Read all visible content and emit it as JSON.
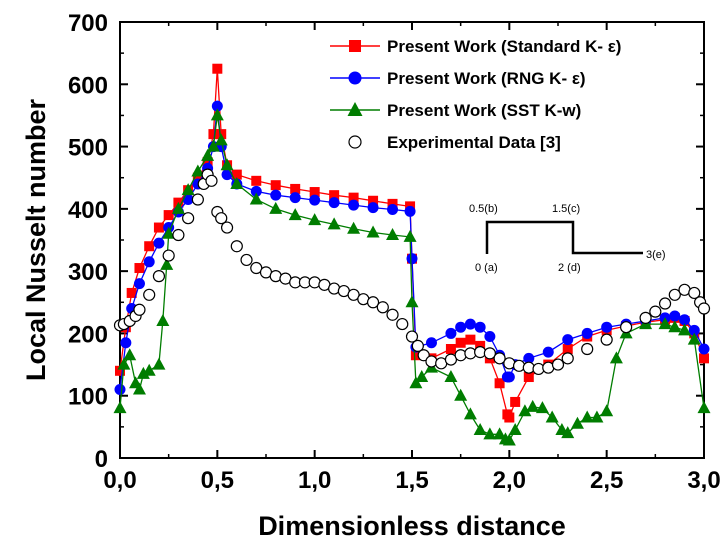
{
  "chart_data": {
    "type": "scatter",
    "xlabel": "Dimensionless distance",
    "ylabel": "Local Nusselt number",
    "xlim": [
      0,
      3
    ],
    "ylim": [
      0,
      700
    ],
    "x_ticks": [
      "0,0",
      "0,5",
      "1,0",
      "1,5",
      "2,0",
      "2,5",
      "3,0"
    ],
    "y_ticks": [
      "0",
      "100",
      "200",
      "300",
      "400",
      "500",
      "600",
      "700"
    ],
    "grid": false,
    "legend_position": "top-right",
    "series": [
      {
        "name": "Present Work (Standard K- ε)",
        "color": "#ff0000",
        "marker": "square",
        "connected": true,
        "points": [
          [
            0.0,
            140
          ],
          [
            0.03,
            210
          ],
          [
            0.06,
            265
          ],
          [
            0.1,
            305
          ],
          [
            0.15,
            340
          ],
          [
            0.2,
            370
          ],
          [
            0.25,
            390
          ],
          [
            0.3,
            410
          ],
          [
            0.35,
            430
          ],
          [
            0.4,
            450
          ],
          [
            0.45,
            475
          ],
          [
            0.48,
            520
          ],
          [
            0.5,
            625
          ],
          [
            0.52,
            520
          ],
          [
            0.55,
            470
          ],
          [
            0.6,
            455
          ],
          [
            0.7,
            445
          ],
          [
            0.8,
            438
          ],
          [
            0.9,
            432
          ],
          [
            1.0,
            427
          ],
          [
            1.1,
            422
          ],
          [
            1.2,
            418
          ],
          [
            1.3,
            413
          ],
          [
            1.4,
            408
          ],
          [
            1.49,
            404
          ],
          [
            1.5,
            320
          ],
          [
            1.52,
            165
          ],
          [
            1.6,
            160
          ],
          [
            1.7,
            175
          ],
          [
            1.75,
            185
          ],
          [
            1.8,
            190
          ],
          [
            1.85,
            180
          ],
          [
            1.9,
            160
          ],
          [
            1.95,
            120
          ],
          [
            1.99,
            70
          ],
          [
            2.0,
            65
          ],
          [
            2.03,
            90
          ],
          [
            2.1,
            130
          ],
          [
            2.2,
            150
          ],
          [
            2.3,
            175
          ],
          [
            2.4,
            195
          ],
          [
            2.5,
            205
          ],
          [
            2.6,
            212
          ],
          [
            2.7,
            218
          ],
          [
            2.8,
            222
          ],
          [
            2.85,
            225
          ],
          [
            2.9,
            220
          ],
          [
            2.95,
            200
          ],
          [
            3.0,
            160
          ]
        ]
      },
      {
        "name": "Present Work (RNG K- ε)",
        "color": "#0000ff",
        "marker": "circle",
        "connected": true,
        "points": [
          [
            0.0,
            110
          ],
          [
            0.03,
            185
          ],
          [
            0.06,
            240
          ],
          [
            0.1,
            280
          ],
          [
            0.15,
            315
          ],
          [
            0.2,
            345
          ],
          [
            0.25,
            370
          ],
          [
            0.3,
            395
          ],
          [
            0.35,
            415
          ],
          [
            0.4,
            440
          ],
          [
            0.45,
            465
          ],
          [
            0.48,
            500
          ],
          [
            0.5,
            565
          ],
          [
            0.52,
            500
          ],
          [
            0.55,
            455
          ],
          [
            0.6,
            440
          ],
          [
            0.7,
            428
          ],
          [
            0.8,
            422
          ],
          [
            0.9,
            418
          ],
          [
            1.0,
            414
          ],
          [
            1.1,
            410
          ],
          [
            1.2,
            406
          ],
          [
            1.3,
            402
          ],
          [
            1.4,
            399
          ],
          [
            1.49,
            396
          ],
          [
            1.5,
            320
          ],
          [
            1.52,
            178
          ],
          [
            1.6,
            185
          ],
          [
            1.7,
            200
          ],
          [
            1.75,
            210
          ],
          [
            1.8,
            215
          ],
          [
            1.85,
            210
          ],
          [
            1.9,
            195
          ],
          [
            1.95,
            165
          ],
          [
            1.99,
            130
          ],
          [
            2.0,
            130
          ],
          [
            2.03,
            150
          ],
          [
            2.1,
            160
          ],
          [
            2.2,
            170
          ],
          [
            2.3,
            190
          ],
          [
            2.4,
            200
          ],
          [
            2.5,
            210
          ],
          [
            2.6,
            215
          ],
          [
            2.7,
            220
          ],
          [
            2.8,
            225
          ],
          [
            2.85,
            228
          ],
          [
            2.9,
            222
          ],
          [
            2.95,
            205
          ],
          [
            3.0,
            175
          ]
        ]
      },
      {
        "name": "Present Work (SST K-w)",
        "color": "#007d00",
        "marker": "triangle",
        "connected": true,
        "points": [
          [
            0.0,
            80
          ],
          [
            0.02,
            150
          ],
          [
            0.05,
            165
          ],
          [
            0.08,
            120
          ],
          [
            0.1,
            110
          ],
          [
            0.12,
            135
          ],
          [
            0.15,
            140
          ],
          [
            0.2,
            150
          ],
          [
            0.22,
            220
          ],
          [
            0.24,
            310
          ],
          [
            0.25,
            360
          ],
          [
            0.3,
            400
          ],
          [
            0.35,
            430
          ],
          [
            0.4,
            460
          ],
          [
            0.45,
            485
          ],
          [
            0.48,
            500
          ],
          [
            0.5,
            550
          ],
          [
            0.52,
            510
          ],
          [
            0.55,
            470
          ],
          [
            0.6,
            440
          ],
          [
            0.7,
            415
          ],
          [
            0.8,
            400
          ],
          [
            0.9,
            390
          ],
          [
            1.0,
            382
          ],
          [
            1.1,
            375
          ],
          [
            1.2,
            368
          ],
          [
            1.3,
            362
          ],
          [
            1.4,
            358
          ],
          [
            1.49,
            355
          ],
          [
            1.5,
            250
          ],
          [
            1.52,
            120
          ],
          [
            1.55,
            130
          ],
          [
            1.6,
            145
          ],
          [
            1.7,
            130
          ],
          [
            1.75,
            100
          ],
          [
            1.8,
            70
          ],
          [
            1.85,
            45
          ],
          [
            1.9,
            38
          ],
          [
            1.95,
            38
          ],
          [
            1.98,
            30
          ],
          [
            2.0,
            28
          ],
          [
            2.03,
            45
          ],
          [
            2.08,
            75
          ],
          [
            2.12,
            82
          ],
          [
            2.17,
            80
          ],
          [
            2.22,
            65
          ],
          [
            2.27,
            45
          ],
          [
            2.3,
            40
          ],
          [
            2.35,
            55
          ],
          [
            2.4,
            65
          ],
          [
            2.45,
            65
          ],
          [
            2.5,
            75
          ],
          [
            2.55,
            160
          ],
          [
            2.6,
            200
          ],
          [
            2.7,
            215
          ],
          [
            2.8,
            215
          ],
          [
            2.85,
            210
          ],
          [
            2.9,
            205
          ],
          [
            2.95,
            190
          ],
          [
            3.0,
            80
          ]
        ]
      },
      {
        "name": "Experimental Data [3]",
        "color": "#000000",
        "marker": "open-circle",
        "connected": false,
        "points": [
          [
            0.0,
            213
          ],
          [
            0.02,
            215
          ],
          [
            0.05,
            220
          ],
          [
            0.08,
            228
          ],
          [
            0.1,
            238
          ],
          [
            0.15,
            262
          ],
          [
            0.2,
            292
          ],
          [
            0.25,
            325
          ],
          [
            0.3,
            358
          ],
          [
            0.35,
            385
          ],
          [
            0.4,
            415
          ],
          [
            0.43,
            440
          ],
          [
            0.45,
            455
          ],
          [
            0.47,
            445
          ],
          [
            0.5,
            395
          ],
          [
            0.52,
            385
          ],
          [
            0.55,
            370
          ],
          [
            0.6,
            340
          ],
          [
            0.65,
            318
          ],
          [
            0.7,
            305
          ],
          [
            0.75,
            298
          ],
          [
            0.8,
            292
          ],
          [
            0.85,
            288
          ],
          [
            0.9,
            282
          ],
          [
            0.95,
            282
          ],
          [
            1.0,
            282
          ],
          [
            1.05,
            278
          ],
          [
            1.1,
            272
          ],
          [
            1.15,
            268
          ],
          [
            1.2,
            262
          ],
          [
            1.25,
            255
          ],
          [
            1.3,
            250
          ],
          [
            1.35,
            242
          ],
          [
            1.4,
            230
          ],
          [
            1.45,
            215
          ],
          [
            1.5,
            195
          ],
          [
            1.53,
            180
          ],
          [
            1.56,
            165
          ],
          [
            1.6,
            155
          ],
          [
            1.65,
            152
          ],
          [
            1.7,
            158
          ],
          [
            1.75,
            165
          ],
          [
            1.8,
            168
          ],
          [
            1.85,
            170
          ],
          [
            1.9,
            168
          ],
          [
            1.95,
            160
          ],
          [
            2.0,
            152
          ],
          [
            2.05,
            148
          ],
          [
            2.1,
            145
          ],
          [
            2.15,
            143
          ],
          [
            2.2,
            145
          ],
          [
            2.25,
            150
          ],
          [
            2.3,
            160
          ],
          [
            2.4,
            175
          ],
          [
            2.5,
            190
          ],
          [
            2.6,
            210
          ],
          [
            2.7,
            225
          ],
          [
            2.75,
            235
          ],
          [
            2.8,
            248
          ],
          [
            2.85,
            262
          ],
          [
            2.9,
            270
          ],
          [
            2.95,
            265
          ],
          [
            2.98,
            250
          ],
          [
            3.0,
            240
          ]
        ]
      }
    ],
    "inset": {
      "labels": [
        "0.5(b)",
        "1.5(c)",
        "0 (a)",
        "2 (d)",
        "3(e)"
      ]
    }
  }
}
